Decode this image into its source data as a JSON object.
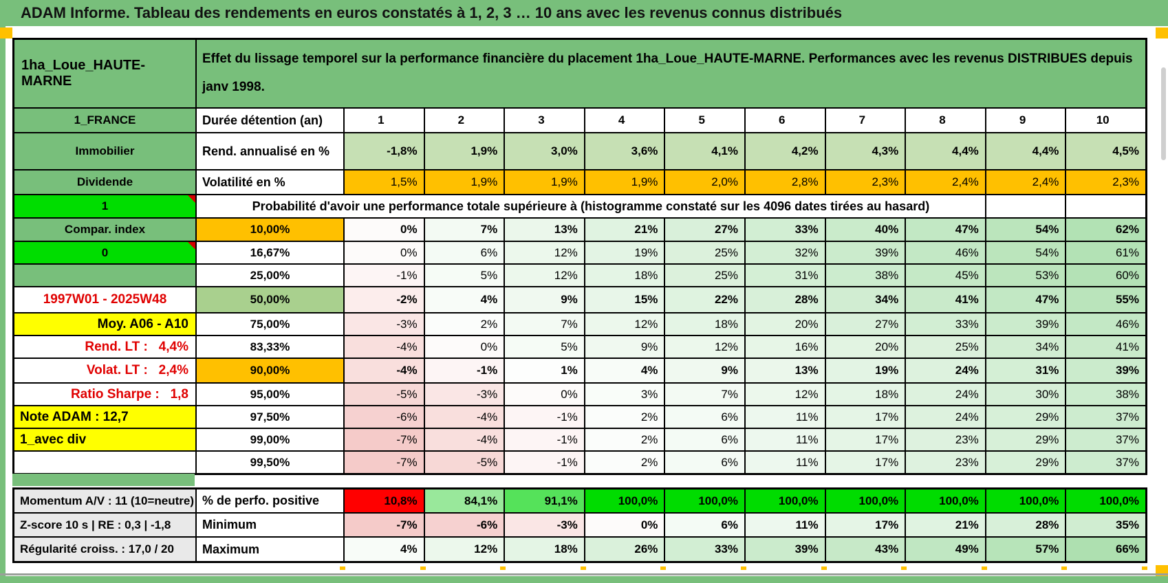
{
  "title": "ADAM Informe. Tableau des rendements en euros constatés à 1, 2, 3 … 10 ans avec les revenus connus distribués",
  "header": {
    "name": "1ha_Loue_HAUTE-MARNE",
    "description": "Effet du lissage temporel sur la performance financière du placement 1ha_Loue_HAUTE-MARNE. Performances avec les revenus DISTRIBUES depuis janv 1998."
  },
  "info_cells": [
    {
      "text": "1_FRANCE",
      "style": "green"
    },
    {
      "text": "Immobilier",
      "style": "green"
    },
    {
      "text": "Dividende",
      "style": "green"
    },
    {
      "text": "1",
      "style": "bright",
      "comment": true
    },
    {
      "text": "Compar. index",
      "style": "green"
    },
    {
      "text": "0",
      "style": "bright",
      "comment": true
    },
    {
      "text": "",
      "style": "green"
    },
    {
      "text": "1997W01 - 2025W48",
      "style": "red-center"
    },
    {
      "text": "Moy. A06 - A10",
      "style": "yellow-right"
    },
    {
      "text": "Rend. LT :   4,4%",
      "style": "red-right"
    },
    {
      "text": "Volat. LT :   2,4%",
      "style": "red-right"
    },
    {
      "text": "Ratio Sharpe :   1,8",
      "style": "red-right"
    },
    {
      "text": "Note ADAM : 12,7",
      "style": "yellow-left"
    },
    {
      "text": "1_avec div",
      "style": "yellow-left"
    },
    {
      "text": "",
      "style": "white"
    }
  ],
  "table": {
    "duration": {
      "label": "Durée détention (an)",
      "values": [
        "1",
        "2",
        "3",
        "4",
        "5",
        "6",
        "7",
        "8",
        "9",
        "10"
      ]
    },
    "rend": {
      "label": "Rend. annualisé en %",
      "values": [
        "-1,8%",
        "1,9%",
        "3,0%",
        "3,6%",
        "4,1%",
        "4,2%",
        "4,3%",
        "4,4%",
        "4,4%",
        "4,5%"
      ]
    },
    "volat": {
      "label": "Volatilité en %",
      "values": [
        "1,5%",
        "1,9%",
        "1,9%",
        "1,9%",
        "2,0%",
        "2,8%",
        "2,3%",
        "2,4%",
        "2,4%",
        "2,3%"
      ]
    },
    "proba_header": "Probabilité d'avoir une performance totale supérieure à (histogramme constaté sur les 4096 dates tirées au hasard)",
    "proba_rows": [
      {
        "label": "10,00%",
        "labelStyle": "orange",
        "bold": true,
        "values": [
          0,
          7,
          13,
          21,
          27,
          33,
          40,
          47,
          54,
          62
        ]
      },
      {
        "label": "16,67%",
        "labelStyle": "white",
        "bold": false,
        "values": [
          0,
          6,
          12,
          19,
          25,
          32,
          39,
          46,
          54,
          61
        ]
      },
      {
        "label": "25,00%",
        "labelStyle": "white",
        "bold": false,
        "values": [
          -1,
          5,
          12,
          18,
          25,
          31,
          38,
          45,
          53,
          60
        ]
      },
      {
        "label": "50,00%",
        "labelStyle": "sage",
        "bold": true,
        "values": [
          -2,
          4,
          9,
          15,
          22,
          28,
          34,
          41,
          47,
          55
        ]
      },
      {
        "label": "75,00%",
        "labelStyle": "white",
        "bold": false,
        "values": [
          -3,
          2,
          7,
          12,
          18,
          20,
          27,
          33,
          39,
          46
        ]
      },
      {
        "label": "83,33%",
        "labelStyle": "white",
        "bold": false,
        "values": [
          -4,
          0,
          5,
          9,
          12,
          16,
          20,
          25,
          34,
          41
        ]
      },
      {
        "label": "90,00%",
        "labelStyle": "orange",
        "bold": true,
        "values": [
          -4,
          -1,
          1,
          4,
          9,
          13,
          19,
          24,
          31,
          39
        ]
      },
      {
        "label": "95,00%",
        "labelStyle": "white",
        "bold": false,
        "values": [
          -5,
          -3,
          0,
          3,
          7,
          12,
          18,
          24,
          30,
          38
        ]
      },
      {
        "label": "97,50%",
        "labelStyle": "white",
        "bold": false,
        "values": [
          -6,
          -4,
          -1,
          2,
          6,
          11,
          17,
          24,
          29,
          37
        ]
      },
      {
        "label": "99,00%",
        "labelStyle": "white",
        "bold": false,
        "values": [
          -7,
          -4,
          -1,
          2,
          6,
          11,
          17,
          23,
          29,
          37
        ]
      },
      {
        "label": "99,50%",
        "labelStyle": "white",
        "bold": false,
        "values": [
          -7,
          -5,
          -1,
          2,
          6,
          11,
          17,
          23,
          29,
          37
        ]
      }
    ],
    "bottom_rows": [
      {
        "info": "Momentum A/V : 11 (10=neutre)",
        "label": "% de perfo. positive",
        "values": [
          "10,8%",
          "84,1%",
          "91,1%",
          "100,0%",
          "100,0%",
          "100,0%",
          "100,0%",
          "100,0%",
          "100,0%",
          "100,0%"
        ],
        "colors": [
          "#FF0000",
          "#99E89B",
          "#55E25A",
          "#00DC00",
          "#00DC00",
          "#00DC00",
          "#00DC00",
          "#00DC00",
          "#00DC00",
          "#00DC00"
        ]
      },
      {
        "info": "Z-score 10 s | RE : 0,3 | -1,8",
        "label": "Minimum",
        "values": [
          -7,
          -6,
          -3,
          0,
          6,
          11,
          17,
          21,
          28,
          35
        ]
      },
      {
        "info": "Régularité croiss. : 17,0 / 20",
        "label": "Maximum",
        "values": [
          4,
          12,
          18,
          26,
          33,
          39,
          43,
          49,
          57,
          66
        ]
      }
    ]
  },
  "colors": {
    "frame_green": "#78BF7B",
    "header_green": "#78BF7B",
    "bright_green": "#00DD00",
    "sage": "#A9D08E",
    "rend_row_green": "#C6E0B4",
    "orange": "#FFC000",
    "yellow": "#FFFF00",
    "red": "#FF0000",
    "red_text": "#E00000",
    "info_gray": "#E9E9E9",
    "neg_shade": "#F5CBC9",
    "pos_shade": "#AEE0B0"
  }
}
